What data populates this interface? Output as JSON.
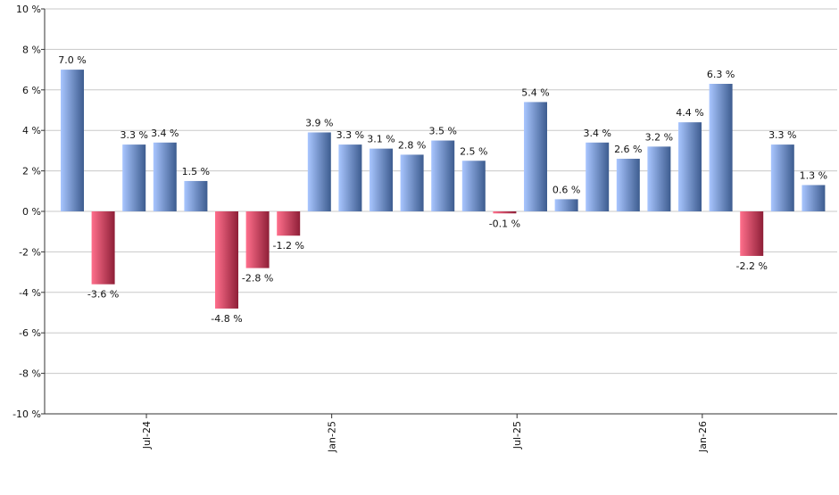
{
  "chart_data": {
    "type": "bar",
    "ylim": [
      -10,
      10
    ],
    "y_ticks": [
      10,
      8,
      6,
      4,
      2,
      0,
      -2,
      -4,
      -6,
      -8,
      -10
    ],
    "y_tick_labels": [
      "10 %",
      "8 %",
      "6 %",
      "4 %",
      "2 %",
      "0 %",
      "-2 %",
      "-4 %",
      "-6 %",
      "-8 %",
      "-10 %"
    ],
    "grid": true,
    "x_tick_labels": [
      {
        "index": 2.4,
        "label": "Jul-24"
      },
      {
        "index": 8.4,
        "label": "Jan-25"
      },
      {
        "index": 14.4,
        "label": "Jul-25"
      },
      {
        "index": 20.4,
        "label": "Jan-26"
      }
    ],
    "values": [
      7.0,
      -3.6,
      3.3,
      3.4,
      1.5,
      -4.8,
      -2.8,
      -1.2,
      3.9,
      3.3,
      3.1,
      2.8,
      3.5,
      2.5,
      -0.1,
      5.4,
      0.6,
      3.4,
      2.6,
      3.2,
      4.4,
      6.3,
      -2.2,
      3.3,
      1.3
    ],
    "data_labels": [
      "7.0 %",
      "-3.6 %",
      "3.3 %",
      "3.4 %",
      "1.5 %",
      "-4.8 %",
      "-2.8 %",
      "-1.2 %",
      "3.9 %",
      "3.3 %",
      "3.1 %",
      "2.8 %",
      "3.5 %",
      "2.5 %",
      "-0.1 %",
      "5.4 %",
      "0.6 %",
      "3.4 %",
      "2.6 %",
      "3.2 %",
      "4.4 %",
      "6.3 %",
      "-2.2 %",
      "3.3 %",
      "1.3 %"
    ],
    "colors": {
      "positive_light": "#a9c6ff",
      "positive_dark": "#3d5c8f",
      "negative_light": "#ff6f8c",
      "negative_dark": "#8e1f37",
      "grid": "#c8c8c8",
      "axis": "#333333"
    }
  }
}
